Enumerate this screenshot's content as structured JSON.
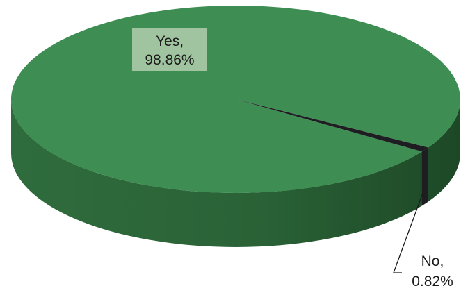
{
  "chart_data": {
    "type": "pie",
    "style": "3d",
    "title": "",
    "slices": [
      {
        "label": "Yes",
        "value": 98.86,
        "display": "98.86%",
        "color": "#3e8e53"
      },
      {
        "label": "No",
        "value": 0.82,
        "display": "0.82%",
        "color": "#1e1e22"
      }
    ],
    "legend": "none",
    "label_separator": ","
  }
}
